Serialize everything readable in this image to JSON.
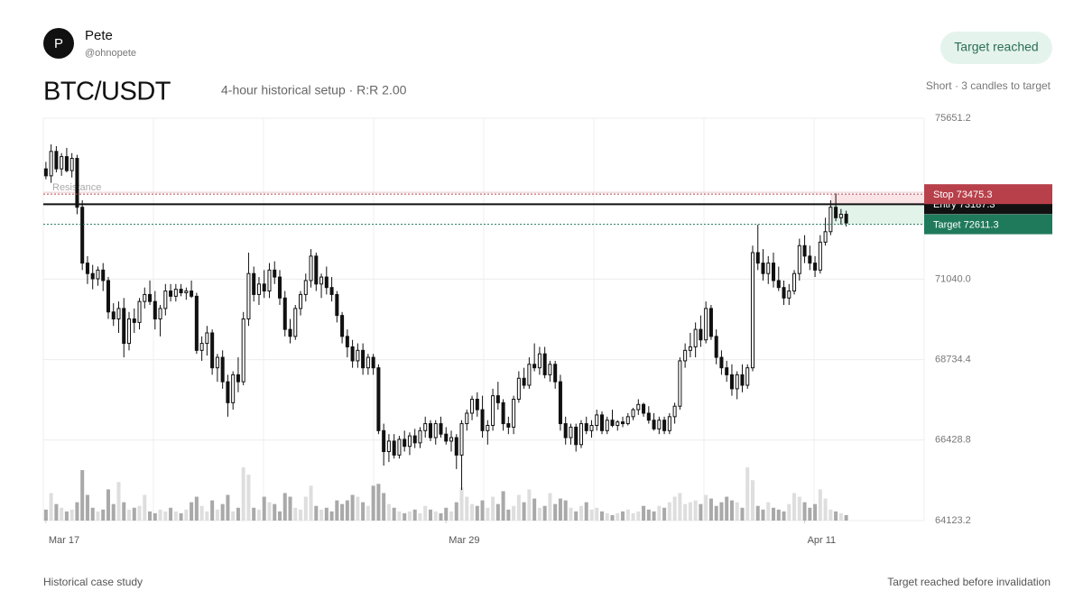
{
  "header": {
    "avatar": "P",
    "name": "Pete",
    "handle": "@ohnopete",
    "badge": "Target reached",
    "title": "BTC/USDT",
    "subtitle": "4-hour historical setup · R:R 2.00",
    "note": "Short · 3 candles to target"
  },
  "chart_data": {
    "type": "candlestick",
    "ylim": [
      64123.2,
      75651.2
    ],
    "yticks": [
      75651.2,
      {
        "value": 71040,
        "label": "71040.0"
      },
      68734.4,
      66428.8,
      64123.2
    ],
    "xlim": [
      -0.5,
      169
    ],
    "xticks": [
      {
        "value": 0,
        "label": "Mar 17"
      },
      {
        "value": 77,
        "label": "Mar 29"
      },
      {
        "value": 146,
        "label": "Apr 11"
      }
    ],
    "ohlc": [
      [
        74200,
        74400,
        73900,
        74000
      ],
      [
        74000,
        74900,
        73800,
        74700
      ],
      [
        74700,
        74850,
        74100,
        74200
      ],
      [
        74200,
        74650,
        74000,
        74550
      ],
      [
        74550,
        74800,
        74100,
        74150
      ],
      [
        74150,
        74650,
        73950,
        74500
      ],
      [
        74500,
        74600,
        72900,
        73100
      ],
      [
        73100,
        73300,
        71300,
        71500
      ],
      [
        71500,
        71700,
        70900,
        71200
      ],
      [
        71200,
        71450,
        70750,
        71050
      ],
      [
        71050,
        71400,
        70850,
        71300
      ],
      [
        71300,
        71500,
        70700,
        71000
      ],
      [
        71000,
        71100,
        69900,
        70100
      ],
      [
        70100,
        70350,
        69700,
        69900
      ],
      [
        69900,
        70400,
        69500,
        70200
      ],
      [
        70200,
        70500,
        68800,
        69200
      ],
      [
        69200,
        70100,
        69000,
        69900
      ],
      [
        69900,
        70200,
        69500,
        69800
      ],
      [
        69800,
        70500,
        69600,
        70400
      ],
      [
        70400,
        70800,
        70200,
        70600
      ],
      [
        70600,
        71000,
        70300,
        70400
      ],
      [
        70400,
        70700,
        69600,
        69900
      ],
      [
        69900,
        70300,
        69400,
        70200
      ],
      [
        70200,
        70900,
        70000,
        70700
      ],
      [
        70700,
        70900,
        70400,
        70550
      ],
      [
        70550,
        70900,
        70400,
        70750
      ],
      [
        70750,
        70900,
        70550,
        70650
      ],
      [
        70650,
        70800,
        70450,
        70700
      ],
      [
        70700,
        71000,
        70500,
        70550
      ],
      [
        70550,
        70650,
        68900,
        69000
      ],
      [
        69000,
        69400,
        68700,
        69200
      ],
      [
        69200,
        69700,
        68850,
        69500
      ],
      [
        69500,
        69600,
        68300,
        68500
      ],
      [
        68500,
        68900,
        68100,
        68800
      ],
      [
        68800,
        69000,
        67900,
        68100
      ],
      [
        68100,
        68300,
        67100,
        67500
      ],
      [
        67500,
        68400,
        67300,
        68300
      ],
      [
        68300,
        68800,
        67800,
        68100
      ],
      [
        68100,
        70100,
        68000,
        69900
      ],
      [
        69900,
        71800,
        69700,
        71200
      ],
      [
        71200,
        71400,
        70400,
        70600
      ],
      [
        70600,
        71100,
        70300,
        70900
      ],
      [
        70900,
        71300,
        70500,
        70700
      ],
      [
        70700,
        71500,
        70500,
        71300
      ],
      [
        71300,
        71550,
        70900,
        71100
      ],
      [
        71100,
        71300,
        70300,
        70500
      ],
      [
        70500,
        70700,
        69400,
        69600
      ],
      [
        69600,
        69900,
        69200,
        69400
      ],
      [
        69400,
        70300,
        69300,
        70200
      ],
      [
        70200,
        70700,
        70000,
        70600
      ],
      [
        70600,
        71200,
        70400,
        71000
      ],
      [
        71000,
        71900,
        70800,
        71700
      ],
      [
        71700,
        71800,
        70700,
        70900
      ],
      [
        70900,
        71200,
        70500,
        71100
      ],
      [
        71100,
        71400,
        70600,
        70800
      ],
      [
        70800,
        71100,
        70400,
        70600
      ],
      [
        70600,
        70700,
        69800,
        70000
      ],
      [
        70000,
        70100,
        69200,
        69400
      ],
      [
        69400,
        69600,
        68800,
        69100
      ],
      [
        69100,
        69300,
        68500,
        68700
      ],
      [
        68700,
        69200,
        68500,
        69000
      ],
      [
        69000,
        69200,
        68300,
        68500
      ],
      [
        68500,
        68900,
        68300,
        68800
      ],
      [
        68800,
        68900,
        68300,
        68500
      ],
      [
        68500,
        68600,
        66600,
        66700
      ],
      [
        66700,
        66900,
        65700,
        66100
      ],
      [
        66100,
        66600,
        65800,
        66400
      ],
      [
        66400,
        66600,
        65900,
        66000
      ],
      [
        66000,
        66550,
        65900,
        66450
      ],
      [
        66450,
        66700,
        66100,
        66250
      ],
      [
        66250,
        66650,
        66000,
        66550
      ],
      [
        66550,
        66750,
        66200,
        66350
      ],
      [
        66350,
        66800,
        66200,
        66700
      ],
      [
        66700,
        67100,
        66500,
        66900
      ],
      [
        66900,
        67000,
        66400,
        66500
      ],
      [
        66500,
        67000,
        66300,
        66900
      ],
      [
        66900,
        67100,
        66500,
        66600
      ],
      [
        66600,
        66800,
        66300,
        66400
      ],
      [
        66400,
        66700,
        66100,
        66500
      ],
      [
        66500,
        66600,
        65600,
        66000
      ],
      [
        66000,
        67000,
        65000,
        66900
      ],
      [
        66900,
        67300,
        66700,
        67200
      ],
      [
        67200,
        67700,
        67000,
        67600
      ],
      [
        67600,
        67800,
        67100,
        67300
      ],
      [
        67300,
        67700,
        66500,
        66700
      ],
      [
        66700,
        67000,
        66300,
        66850
      ],
      [
        66850,
        67900,
        66700,
        67700
      ],
      [
        67700,
        68100,
        67300,
        67500
      ],
      [
        67500,
        67600,
        66700,
        66900
      ],
      [
        66900,
        67100,
        66600,
        66800
      ],
      [
        66800,
        67700,
        66600,
        67600
      ],
      [
        67600,
        68400,
        67500,
        68200
      ],
      [
        68200,
        68500,
        67900,
        68000
      ],
      [
        68000,
        68800,
        67900,
        68600
      ],
      [
        68600,
        69200,
        68400,
        68500
      ],
      [
        68500,
        69100,
        68300,
        68900
      ],
      [
        68900,
        69100,
        68200,
        68300
      ],
      [
        68300,
        68700,
        68100,
        68600
      ],
      [
        68600,
        68700,
        67900,
        68100
      ],
      [
        68100,
        68300,
        66700,
        66900
      ],
      [
        66900,
        67100,
        66300,
        66500
      ],
      [
        66500,
        66900,
        66300,
        66800
      ],
      [
        66800,
        66900,
        66100,
        66300
      ],
      [
        66300,
        67000,
        66200,
        66900
      ],
      [
        66900,
        67100,
        66600,
        66700
      ],
      [
        66700,
        67000,
        66500,
        66850
      ],
      [
        66850,
        67300,
        66700,
        67150
      ],
      [
        67150,
        67250,
        66600,
        66700
      ],
      [
        66700,
        67100,
        66600,
        67000
      ],
      [
        67000,
        67300,
        66800,
        66850
      ],
      [
        66850,
        67000,
        66700,
        66950
      ],
      [
        66950,
        67100,
        66800,
        66900
      ],
      [
        66900,
        67200,
        66850,
        67100
      ],
      [
        67100,
        67350,
        67000,
        67300
      ],
      [
        67300,
        67600,
        67150,
        67450
      ],
      [
        67450,
        67500,
        67100,
        67200
      ],
      [
        67200,
        67400,
        66900,
        67000
      ],
      [
        67000,
        67200,
        66700,
        66750
      ],
      [
        66750,
        67100,
        66600,
        67000
      ],
      [
        67000,
        67100,
        66600,
        66700
      ],
      [
        66700,
        67200,
        66600,
        67100
      ],
      [
        67100,
        67500,
        66900,
        67400
      ],
      [
        67400,
        68800,
        67300,
        68700
      ],
      [
        68700,
        69200,
        68500,
        69000
      ],
      [
        69000,
        69500,
        68800,
        69100
      ],
      [
        69100,
        69800,
        68800,
        69600
      ],
      [
        69600,
        70000,
        69100,
        69300
      ],
      [
        69300,
        70400,
        69200,
        70200
      ],
      [
        70200,
        70300,
        69300,
        69400
      ],
      [
        69400,
        69600,
        68600,
        68800
      ],
      [
        68800,
        69000,
        68300,
        68500
      ],
      [
        68500,
        68700,
        68100,
        68300
      ],
      [
        68300,
        68600,
        67700,
        67900
      ],
      [
        67900,
        68400,
        67600,
        68300
      ],
      [
        68300,
        68600,
        67800,
        68000
      ],
      [
        68000,
        68600,
        67900,
        68500
      ],
      [
        68500,
        72000,
        68400,
        71800
      ],
      [
        71800,
        72600,
        71300,
        71500
      ],
      [
        71500,
        71900,
        71000,
        71200
      ],
      [
        71200,
        71700,
        70900,
        71500
      ],
      [
        71500,
        71800,
        70800,
        71000
      ],
      [
        71000,
        71400,
        70700,
        70800
      ],
      [
        70800,
        71000,
        70300,
        70500
      ],
      [
        70500,
        70900,
        70300,
        70700
      ],
      [
        70700,
        71300,
        70600,
        71200
      ],
      [
        71200,
        72200,
        71000,
        72000
      ],
      [
        72000,
        72300,
        71500,
        71700
      ],
      [
        71700,
        72000,
        71300,
        71500
      ],
      [
        71500,
        71700,
        71100,
        71300
      ],
      [
        71300,
        72300,
        71200,
        72100
      ],
      [
        72100,
        72800,
        72000,
        72400
      ],
      [
        72400,
        73300,
        72300,
        73100
      ],
      [
        73100,
        73500,
        72700,
        72800
      ],
      [
        72800,
        73050,
        72600,
        72900
      ],
      [
        72900,
        73000,
        72550,
        72650
      ]
    ],
    "volume": [
      12,
      30,
      18,
      14,
      10,
      12,
      20,
      55,
      28,
      14,
      10,
      12,
      34,
      18,
      42,
      20,
      12,
      14,
      16,
      28,
      10,
      8,
      12,
      10,
      14,
      10,
      8,
      12,
      20,
      26,
      16,
      10,
      22,
      12,
      18,
      28,
      10,
      14,
      58,
      50,
      14,
      12,
      26,
      20,
      18,
      10,
      30,
      26,
      14,
      12,
      26,
      38,
      16,
      12,
      14,
      10,
      22,
      18,
      22,
      28,
      26,
      20,
      16,
      38,
      40,
      30,
      18,
      14,
      10,
      8,
      10,
      12,
      8,
      16,
      12,
      10,
      8,
      14,
      10,
      20,
      36,
      26,
      18,
      16,
      22,
      14,
      26,
      18,
      32,
      12,
      16,
      28,
      20,
      34,
      24,
      14,
      16,
      30,
      18,
      24,
      22,
      14,
      10,
      16,
      20,
      12,
      14,
      10,
      8,
      6,
      8,
      10,
      12,
      8,
      10,
      16,
      12,
      10,
      16,
      14,
      20,
      26,
      30,
      18,
      20,
      22,
      18,
      28,
      24,
      16,
      20,
      26,
      22,
      20,
      14,
      58,
      44,
      16,
      12,
      20,
      14,
      12,
      10,
      18,
      30,
      26,
      20,
      14,
      18,
      34,
      24,
      12,
      10,
      8,
      6
    ],
    "up_color": "#ffffff",
    "down_color": "#111111",
    "wick_color": "#111111",
    "volume_up_color": "#dedede",
    "volume_down_color": "#a9a9a9",
    "levels": [
      {
        "label": "Entry 73187.3",
        "value": 73187.3,
        "color": "#111111"
      },
      {
        "label": "Stop 73475.3",
        "value": 73475.3,
        "color": "#b8404a"
      },
      {
        "label": "Target 72611.3",
        "value": 72611.3,
        "color": "#1f7a5c"
      }
    ],
    "resistance": {
      "label": "Resistance",
      "value": 73530
    },
    "setup_start": 151,
    "grid": true
  },
  "footer": {
    "left": "Historical case study",
    "right": "Target reached before invalidation"
  }
}
